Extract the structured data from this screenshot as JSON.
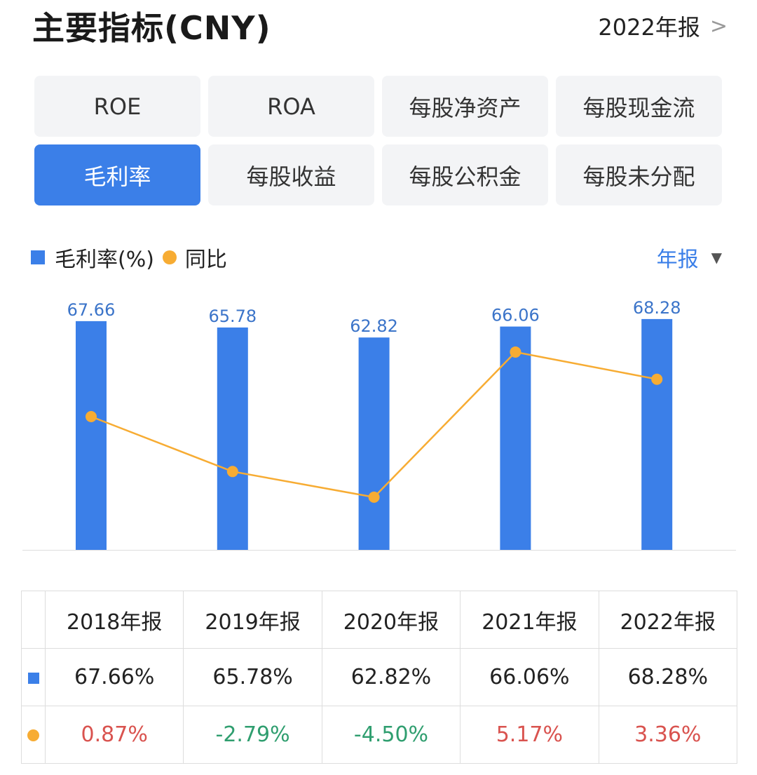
{
  "header": {
    "title": "主要指标(CNY)",
    "report": "2022年报",
    "chevron_icon": "chevron-right-icon"
  },
  "tabs": [
    {
      "label": "ROE"
    },
    {
      "label": "ROA"
    },
    {
      "label": "每股净资产"
    },
    {
      "label": "每股现金流"
    },
    {
      "label": "毛利率",
      "active": true
    },
    {
      "label": "每股收益"
    },
    {
      "label": "每股公积金"
    },
    {
      "label": "每股未分配"
    }
  ],
  "legend": {
    "bar": "毛利率(%)",
    "line": "同比"
  },
  "period": "年报",
  "colors": {
    "bar": "#3b7fe8",
    "line": "#f7ac33",
    "up": "#d9534f",
    "down": "#2f9e6f"
  },
  "chart_data": {
    "type": "bar",
    "categories": [
      "2018年报",
      "2019年报",
      "2020年报",
      "2021年报",
      "2022年报"
    ],
    "series": [
      {
        "name": "毛利率(%)",
        "type": "bar",
        "values": [
          67.66,
          65.78,
          62.82,
          66.06,
          68.28
        ]
      },
      {
        "name": "同比",
        "type": "line",
        "values": [
          0.87,
          -2.79,
          -4.5,
          5.17,
          3.36
        ]
      }
    ],
    "bar_labels": [
      "67.66",
      "65.78",
      "62.82",
      "66.06",
      "68.28"
    ],
    "grid": false,
    "legend": "top-left"
  },
  "table": {
    "headers": [
      "2018年报",
      "2019年报",
      "2020年报",
      "2021年报",
      "2022年报"
    ],
    "bar_row": [
      "67.66%",
      "65.78%",
      "62.82%",
      "66.06%",
      "68.28%"
    ],
    "line_row": [
      "0.87%",
      "-2.79%",
      "-4.50%",
      "5.17%",
      "3.36%"
    ]
  }
}
